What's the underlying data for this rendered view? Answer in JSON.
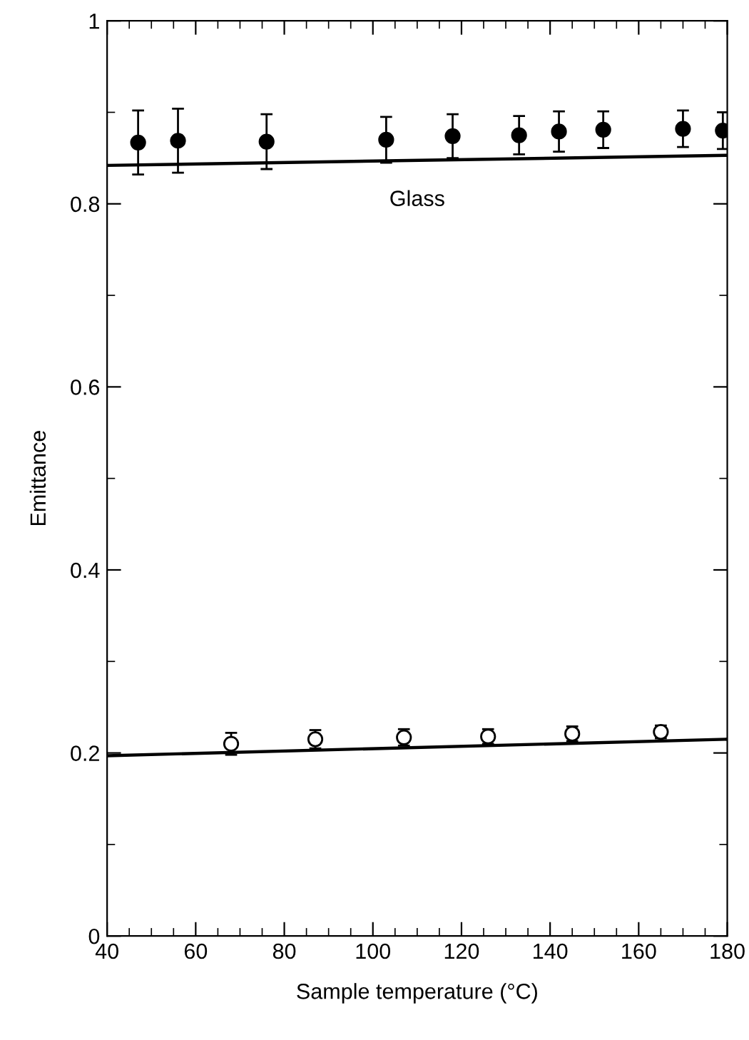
{
  "chart_data": {
    "type": "scatter",
    "xlabel": "Sample temperature (°C)",
    "ylabel": "Emittance",
    "xlim": [
      40,
      180
    ],
    "xticks": [
      40,
      60,
      80,
      100,
      120,
      140,
      160,
      180
    ],
    "ylim": [
      0,
      1
    ],
    "yticks": [
      0,
      0.2,
      0.4,
      0.6,
      0.8,
      1
    ],
    "grid": false,
    "series": [
      {
        "marker": "circle",
        "color": "#000000",
        "x": [
          47,
          56,
          76,
          103,
          118,
          133,
          142,
          152,
          170,
          179
        ],
        "values": [
          0.867,
          0.869,
          0.868,
          0.87,
          0.874,
          0.875,
          0.879,
          0.881,
          0.882,
          0.88
        ],
        "errors": [
          0.035,
          0.035,
          0.03,
          0.025,
          0.024,
          0.021,
          0.022,
          0.02,
          0.02,
          0.02
        ]
      },
      {
        "type": "line",
        "line_style": "solid",
        "color": "#000000",
        "x": [
          40,
          180
        ],
        "values": [
          0.842,
          0.853
        ]
      },
      {
        "marker": "circle",
        "color": "#ffffff",
        "x": [
          68,
          87,
          107,
          126,
          145,
          165
        ],
        "values": [
          0.21,
          0.215,
          0.217,
          0.218,
          0.221,
          0.223
        ],
        "errors": [
          0.012,
          0.01,
          0.009,
          0.008,
          0.008,
          0.007
        ]
      },
      {
        "type": "line",
        "line_style": "solid",
        "color": "#000000",
        "x": [
          40,
          180
        ],
        "values": [
          0.197,
          0.215
        ]
      }
    ],
    "annotations": [
      "Glass"
    ]
  }
}
